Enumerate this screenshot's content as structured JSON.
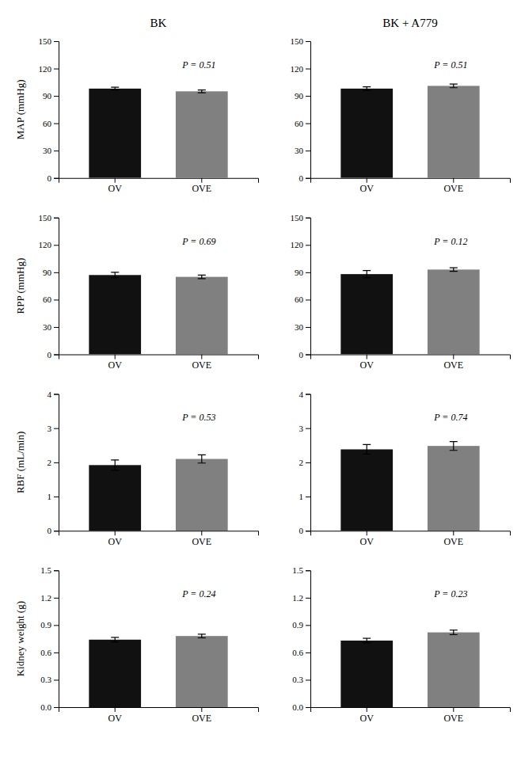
{
  "chart_data": [
    {
      "type": "bar",
      "title": "BK",
      "ylabel": "MAP (mmHg)",
      "categories": [
        "OV",
        "OVE"
      ],
      "values": [
        98,
        95
      ],
      "errors": [
        1.5,
        1.5
      ],
      "colors": [
        "#111111",
        "#808080"
      ],
      "ylim": [
        0,
        150
      ],
      "yticks": [
        0,
        30,
        60,
        90,
        120,
        150
      ],
      "grid": false,
      "annotations": [
        "P = 0.51"
      ]
    },
    {
      "type": "bar",
      "title": "BK + A779",
      "categories": [
        "OV",
        "OVE"
      ],
      "values": [
        98,
        101
      ],
      "errors": [
        2,
        2
      ],
      "colors": [
        "#111111",
        "#808080"
      ],
      "ylim": [
        0,
        150
      ],
      "yticks": [
        0,
        30,
        60,
        90,
        120,
        150
      ],
      "grid": false,
      "annotations": [
        "P = 0.51"
      ]
    },
    {
      "type": "bar",
      "ylabel": "RPP (mmHg)",
      "categories": [
        "OV",
        "OVE"
      ],
      "values": [
        87,
        85
      ],
      "errors": [
        3,
        2
      ],
      "colors": [
        "#111111",
        "#808080"
      ],
      "ylim": [
        0,
        150
      ],
      "yticks": [
        0,
        30,
        60,
        90,
        120,
        150
      ],
      "grid": false,
      "annotations": [
        "P = 0.69"
      ]
    },
    {
      "type": "bar",
      "categories": [
        "OV",
        "OVE"
      ],
      "values": [
        88,
        93
      ],
      "errors": [
        4,
        2
      ],
      "colors": [
        "#111111",
        "#808080"
      ],
      "ylim": [
        0,
        150
      ],
      "yticks": [
        0,
        30,
        60,
        90,
        120,
        150
      ],
      "grid": false,
      "annotations": [
        "P = 0.12"
      ]
    },
    {
      "type": "bar",
      "ylabel": "RBF (mL/min)",
      "categories": [
        "OV",
        "OVE"
      ],
      "values": [
        1.92,
        2.1
      ],
      "errors": [
        0.15,
        0.12
      ],
      "colors": [
        "#111111",
        "#808080"
      ],
      "ylim": [
        0,
        4
      ],
      "yticks": [
        0,
        1,
        2,
        3,
        4
      ],
      "grid": false,
      "annotations": [
        "P = 0.53"
      ]
    },
    {
      "type": "bar",
      "categories": [
        "OV",
        "OVE"
      ],
      "values": [
        2.38,
        2.48
      ],
      "errors": [
        0.14,
        0.13
      ],
      "colors": [
        "#111111",
        "#808080"
      ],
      "ylim": [
        0,
        4
      ],
      "yticks": [
        0,
        1,
        2,
        3,
        4
      ],
      "grid": false,
      "annotations": [
        "P = 0.74"
      ]
    },
    {
      "type": "bar",
      "ylabel": "Kidney weight (g)",
      "categories": [
        "OV",
        "OVE"
      ],
      "values": [
        0.74,
        0.78
      ],
      "errors": [
        0.025,
        0.02
      ],
      "colors": [
        "#111111",
        "#808080"
      ],
      "ylim": [
        0,
        1.5
      ],
      "yticks": [
        {
          "value": 0,
          "label": "0.0"
        },
        0.3,
        0.6,
        0.9,
        1.2,
        1.5
      ],
      "grid": false,
      "annotations": [
        "P = 0.24"
      ]
    },
    {
      "type": "bar",
      "categories": [
        "OV",
        "OVE"
      ],
      "values": [
        0.73,
        0.82
      ],
      "errors": [
        0.025,
        0.025
      ],
      "colors": [
        "#111111",
        "#808080"
      ],
      "ylim": [
        0,
        1.5
      ],
      "yticks": [
        {
          "value": 0,
          "label": "0.0"
        },
        0.3,
        0.6,
        0.9,
        1.2,
        1.5
      ],
      "grid": false,
      "annotations": [
        "P = 0.23"
      ]
    }
  ]
}
